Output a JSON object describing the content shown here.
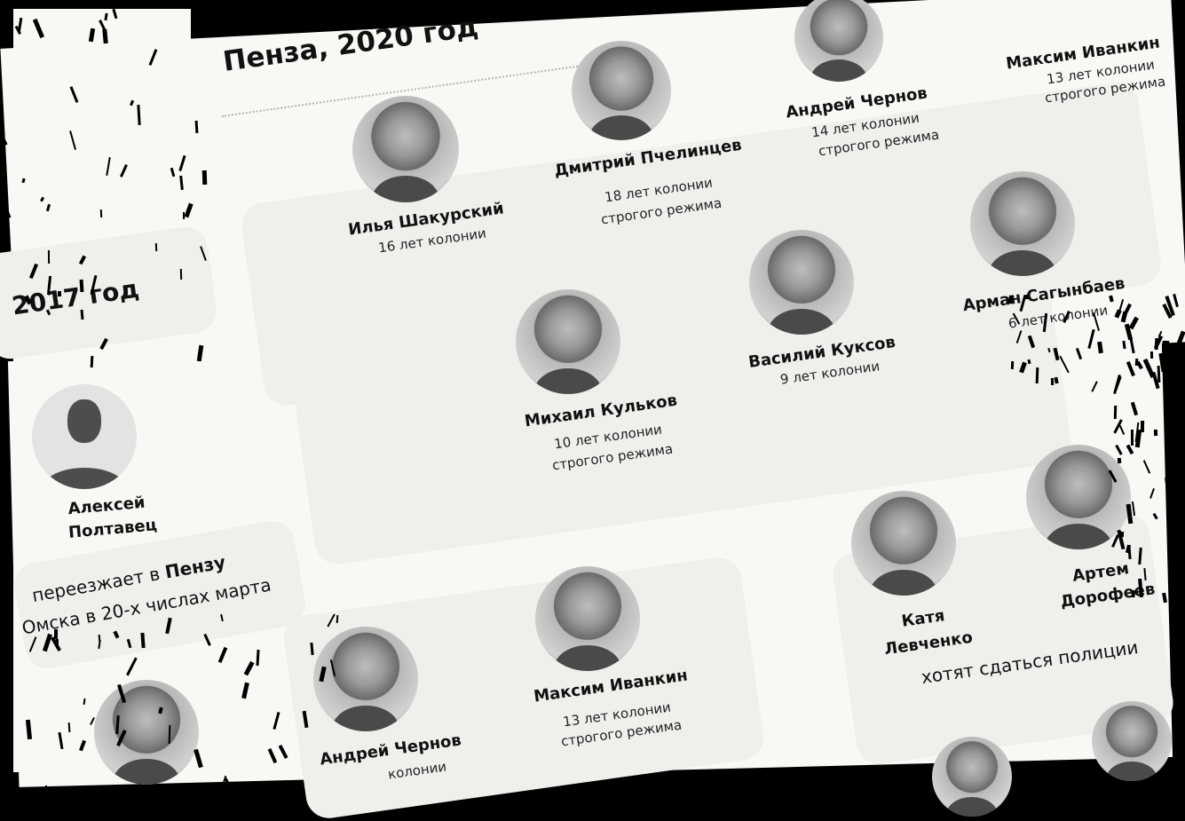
{
  "sections": {
    "penza_title": "Пенза, 2020 год",
    "year_2017": "2017 год"
  },
  "people": [
    {
      "name": "Илья Шакурский",
      "term": [
        "16 лет колонии"
      ]
    },
    {
      "name": "Дмитрий Пчелинцев",
      "term": [
        "18 лет колонии",
        "строгого режима"
      ]
    },
    {
      "name": "Андрей Чернов",
      "term": [
        "14 лет колонии",
        "строгого режима"
      ]
    },
    {
      "name": "Максим Иванкин",
      "term": [
        "13 лет колонии",
        "строгого режима"
      ]
    },
    {
      "name": "Арман Сагынбаев",
      "term": [
        "6 лет колонии"
      ]
    },
    {
      "name": "Василий Куксов",
      "term": [
        "9 лет колонии"
      ]
    },
    {
      "name": "Михаил Кульков",
      "term": [
        "10 лет колонии",
        "строгого режима"
      ]
    },
    {
      "name_lines": [
        "Алексей",
        "Полтавец"
      ]
    },
    {
      "name": "Андрей Чернов",
      "term": [
        "колонии"
      ]
    },
    {
      "name": "Максим Иванкин",
      "term": [
        "13 лет колонии",
        "строгого режима"
      ]
    },
    {
      "name_lines": [
        "Катя",
        "Левченко"
      ]
    },
    {
      "name_lines": [
        "Артем",
        "Дорофеев"
      ]
    }
  ],
  "notes": {
    "moves_prefix": "переезжает в ",
    "moves_city": "Пензу",
    "moves_line2": "Омска в 20-х числах марта",
    "surrender": "хотят сдаться полиции"
  },
  "colors": {
    "background": "#000000",
    "paper": "#f8f8f5",
    "card": "#efefec"
  }
}
